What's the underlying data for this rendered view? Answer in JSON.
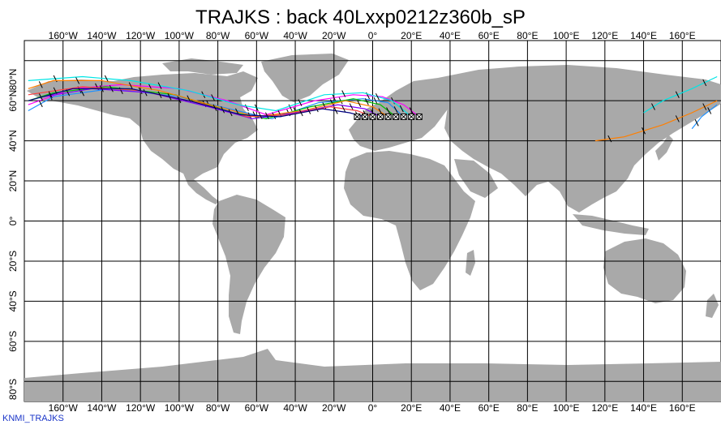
{
  "title": "TRAJKS : back 40Lxxp0212z360b_sP",
  "credit": "KNMI_TRAJKS",
  "colors": {
    "land": "#a9a9a9",
    "ocean": "#ffffff",
    "grid": "#000000",
    "traj_palette": [
      "#ff00ff",
      "#00e5e5",
      "#1e90ff",
      "#00c000",
      "#ff7f00",
      "#8000ff",
      "#ff4040",
      "#000080"
    ]
  },
  "lon_labels": [
    "160°W",
    "140°W",
    "120°W",
    "100°W",
    "80°W",
    "60°W",
    "40°W",
    "20°W",
    "0°",
    "20°E",
    "40°E",
    "60°E",
    "80°E",
    "100°E",
    "120°E",
    "140°E",
    "160°E"
  ],
  "lat_labels": [
    "80°N",
    "60°N",
    "40°N",
    "20°N",
    "0°",
    "20°S",
    "40°S",
    "60°S",
    "80°S"
  ],
  "map": {
    "projection": "equirectangular",
    "lon_range": [
      -180,
      180
    ],
    "lat_range": [
      -90,
      90
    ],
    "grid_spacing_deg": 20,
    "release_points": [
      [
        -8,
        52
      ],
      [
        -4,
        52
      ],
      [
        0,
        52
      ],
      [
        4,
        52
      ],
      [
        8,
        52
      ],
      [
        12,
        52
      ],
      [
        16,
        52
      ],
      [
        20,
        52
      ],
      [
        24,
        52
      ]
    ],
    "trajectories": [
      {
        "color_index": 0,
        "points": [
          [
            24,
            52
          ],
          [
            16,
            58
          ],
          [
            5,
            62
          ],
          [
            -10,
            63
          ],
          [
            -30,
            60
          ],
          [
            -55,
            53
          ],
          [
            -75,
            60
          ],
          [
            -100,
            66
          ],
          [
            -130,
            68
          ],
          [
            -155,
            66
          ],
          [
            -178,
            58
          ]
        ]
      },
      {
        "color_index": 1,
        "points": [
          [
            20,
            52
          ],
          [
            10,
            60
          ],
          [
            -5,
            64
          ],
          [
            -25,
            63
          ],
          [
            -50,
            55
          ],
          [
            -70,
            58
          ],
          [
            -95,
            65
          ],
          [
            -125,
            70
          ],
          [
            -150,
            72
          ],
          [
            -178,
            70
          ]
        ]
      },
      {
        "color_index": 2,
        "points": [
          [
            16,
            52
          ],
          [
            8,
            59
          ],
          [
            -5,
            61
          ],
          [
            -28,
            59
          ],
          [
            -52,
            51
          ],
          [
            -70,
            55
          ],
          [
            -100,
            62
          ],
          [
            -135,
            66
          ],
          [
            -165,
            62
          ],
          [
            -178,
            55
          ]
        ]
      },
      {
        "color_index": 3,
        "points": [
          [
            12,
            52
          ],
          [
            4,
            58
          ],
          [
            -10,
            61
          ],
          [
            -32,
            57
          ],
          [
            -55,
            51
          ],
          [
            -72,
            54
          ],
          [
            -102,
            63
          ],
          [
            -138,
            67
          ],
          [
            -165,
            64
          ],
          [
            -178,
            60
          ]
        ]
      },
      {
        "color_index": 4,
        "points": [
          [
            8,
            52
          ],
          [
            0,
            57
          ],
          [
            -14,
            60
          ],
          [
            -36,
            55
          ],
          [
            -60,
            52
          ],
          [
            -80,
            57
          ],
          [
            -110,
            65
          ],
          [
            -140,
            70
          ],
          [
            -165,
            70
          ],
          [
            -178,
            66
          ]
        ]
      },
      {
        "color_index": 5,
        "points": [
          [
            4,
            52
          ],
          [
            -4,
            56
          ],
          [
            -18,
            58
          ],
          [
            -40,
            54
          ],
          [
            -62,
            51
          ],
          [
            -85,
            57
          ],
          [
            -115,
            64
          ],
          [
            -145,
            66
          ],
          [
            -170,
            62
          ]
        ]
      },
      {
        "color_index": 6,
        "points": [
          [
            0,
            52
          ],
          [
            -8,
            55
          ],
          [
            -22,
            57
          ],
          [
            -44,
            53
          ],
          [
            -65,
            52
          ],
          [
            -90,
            59
          ],
          [
            -120,
            65
          ],
          [
            -150,
            67
          ],
          [
            -178,
            63
          ]
        ]
      },
      {
        "color_index": 7,
        "points": [
          [
            -4,
            52
          ],
          [
            -12,
            54
          ],
          [
            -26,
            56
          ],
          [
            -48,
            52
          ],
          [
            -68,
            53
          ],
          [
            -95,
            60
          ],
          [
            -125,
            66
          ],
          [
            -155,
            66
          ],
          [
            -178,
            60
          ]
        ]
      },
      {
        "color_index": 1,
        "points": [
          [
            178,
            72
          ],
          [
            165,
            66
          ],
          [
            150,
            60
          ],
          [
            140,
            54
          ]
        ]
      },
      {
        "color_index": 4,
        "points": [
          [
            178,
            60
          ],
          [
            165,
            54
          ],
          [
            150,
            48
          ],
          [
            130,
            42
          ],
          [
            115,
            40
          ]
        ]
      },
      {
        "color_index": 2,
        "points": [
          [
            178,
            58
          ],
          [
            170,
            52
          ],
          [
            165,
            46
          ]
        ]
      }
    ]
  }
}
